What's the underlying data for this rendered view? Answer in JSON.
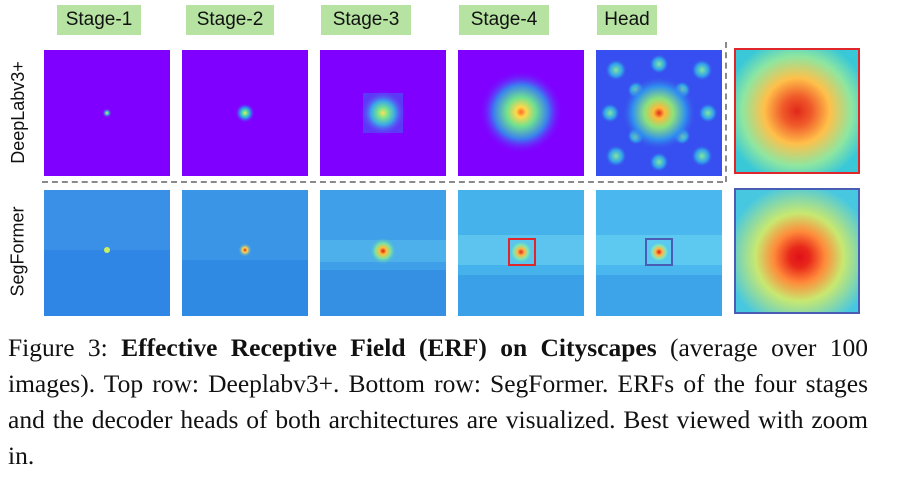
{
  "columns": [
    "Stage-1",
    "Stage-2",
    "Stage-3",
    "Stage-4",
    "Head"
  ],
  "rows": [
    "DeepLabv3+",
    "SegFormer"
  ],
  "colors": {
    "deeplab_bg": "#7f00ff",
    "segformer_bg": "#3a9be6",
    "tab": "#b6e3a1",
    "red_box": "#e0262a",
    "blue_box": "#4a5db5"
  },
  "caption": {
    "lead": "Figure 3: ",
    "bold": "Effective Receptive Field (ERF) on Cityscapes",
    "rest": " (average over 100 images). Top row: Deeplabv3+. Bottom row: SegFormer. ERFs of the four stages and the decoder heads of both architectures are visualized. Best viewed with zoom in."
  }
}
